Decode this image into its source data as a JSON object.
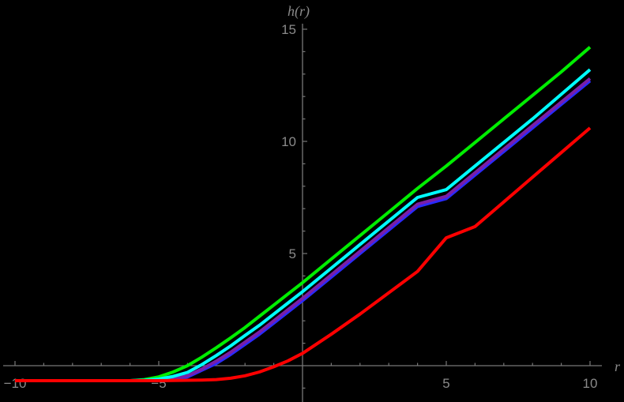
{
  "chart_data": {
    "type": "line",
    "title": "",
    "xlabel": "r",
    "ylabel": "h(r)",
    "xlim": [
      -10,
      10
    ],
    "ylim": [
      -1.6,
      15.3
    ],
    "x_ticks": [
      -10,
      -5,
      5,
      10
    ],
    "y_ticks": [
      5,
      10,
      15
    ],
    "grid": false,
    "legend": null,
    "x": [
      -10,
      -9,
      -8,
      -7,
      -6,
      -5.5,
      -5,
      -4.5,
      -4,
      -3.5,
      -3,
      -2.5,
      -2,
      -1.5,
      -1,
      -0.5,
      0,
      1,
      2,
      3,
      4,
      5,
      6,
      7,
      8,
      9,
      10
    ],
    "series": [
      {
        "name": "green",
        "color": "#00ee00",
        "values": [
          -0.67,
          -0.67,
          -0.67,
          -0.67,
          -0.67,
          -0.62,
          -0.5,
          -0.28,
          0.0,
          0.38,
          0.8,
          1.24,
          1.7,
          2.2,
          2.7,
          3.2,
          3.7,
          4.75,
          5.8,
          6.85,
          7.9,
          8.9,
          9.95,
          11.0,
          12.05,
          13.1,
          14.2
        ]
      },
      {
        "name": "blue",
        "color": "#2a2aff",
        "values": [
          -0.67,
          -0.67,
          -0.67,
          -0.67,
          -0.67,
          -0.66,
          -0.63,
          -0.57,
          -0.5,
          -0.2,
          0.1,
          0.5,
          0.95,
          1.4,
          1.9,
          2.4,
          2.9,
          3.95,
          5.0,
          6.05,
          7.1,
          7.45,
          8.5,
          9.55,
          10.6,
          11.65,
          12.7
        ]
      },
      {
        "name": "purple",
        "color": "#7a1ea8",
        "values": [
          -0.67,
          -0.67,
          -0.67,
          -0.67,
          -0.67,
          -0.66,
          -0.63,
          -0.56,
          -0.45,
          -0.15,
          0.2,
          0.6,
          1.05,
          1.5,
          2.0,
          2.5,
          3.0,
          4.05,
          5.1,
          6.15,
          7.2,
          7.55,
          8.6,
          9.65,
          10.7,
          11.75,
          12.8
        ]
      },
      {
        "name": "cyan",
        "color": "#00ffff",
        "values": [
          -0.67,
          -0.67,
          -0.67,
          -0.67,
          -0.67,
          -0.65,
          -0.6,
          -0.48,
          -0.3,
          0.05,
          0.45,
          0.88,
          1.35,
          1.8,
          2.3,
          2.8,
          3.3,
          4.35,
          5.4,
          6.45,
          7.5,
          7.85,
          8.9,
          9.95,
          11.0,
          12.1,
          13.2
        ]
      },
      {
        "name": "red",
        "color": "#ff0000",
        "values": [
          -0.67,
          -0.67,
          -0.67,
          -0.67,
          -0.67,
          -0.67,
          -0.67,
          -0.66,
          -0.65,
          -0.64,
          -0.62,
          -0.56,
          -0.45,
          -0.28,
          -0.05,
          0.22,
          0.55,
          1.4,
          2.3,
          3.25,
          4.2,
          5.7,
          6.2,
          7.3,
          8.4,
          9.5,
          10.6
        ]
      }
    ]
  }
}
